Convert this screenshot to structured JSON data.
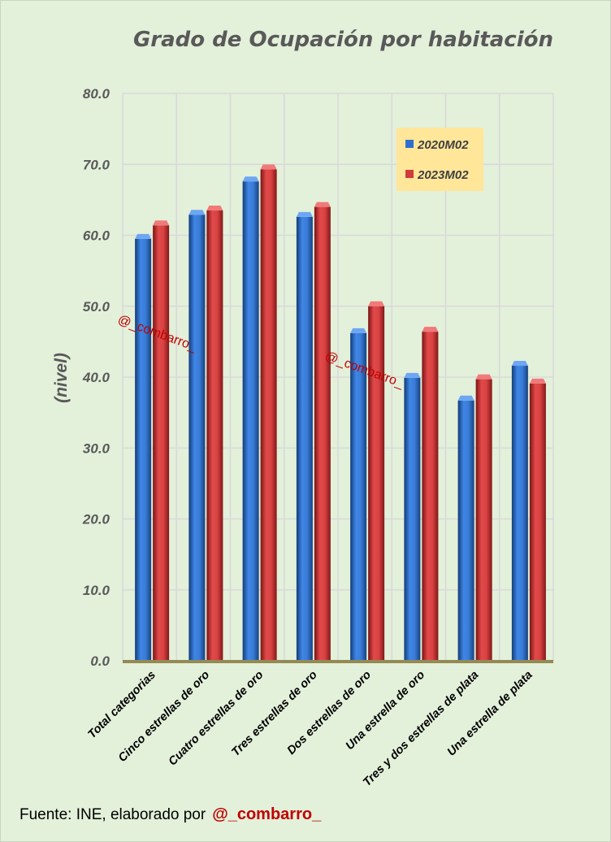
{
  "chart_data": {
    "type": "bar",
    "title": "Grado de Ocupación por habitación",
    "xlabel": "",
    "ylabel": "(nivel)",
    "ylim": [
      0,
      80
    ],
    "yticks": [
      "0.0",
      "10.0",
      "20.0",
      "30.0",
      "40.0",
      "50.0",
      "60.0",
      "70.0",
      "80.0"
    ],
    "grid": true,
    "legend_position": "top-right",
    "categories": [
      "Total categorias",
      "Cinco estrellas de oro",
      "Cuatro estrellas de oro",
      "Tres estrellas de oro",
      "Dos estrellas de oro",
      "Una estrella de oro",
      "Tres y dos estrellas de plata",
      "Una estrella de plata"
    ],
    "series": [
      {
        "name": "2020M02",
        "color": "#2e6fce",
        "values": [
          59.5,
          62.9,
          67.6,
          62.6,
          46.2,
          39.9,
          36.7,
          41.6
        ]
      },
      {
        "name": "2023M02",
        "color": "#d03b3b",
        "values": [
          61.4,
          63.5,
          69.3,
          64.0,
          50.0,
          46.4,
          39.7,
          39.1
        ]
      }
    ],
    "watermarks": [
      "@_combarro_",
      "@_combarro_"
    ]
  },
  "footer": {
    "source": "Fuente: INE, elaborado por",
    "handle": "@_combarro_"
  },
  "colors": {
    "background": "#e3f0da",
    "legend_bg": "#ffe699",
    "axis_line": "#948a54",
    "grid": "#d9d9d9",
    "watermark": "#c00000"
  }
}
